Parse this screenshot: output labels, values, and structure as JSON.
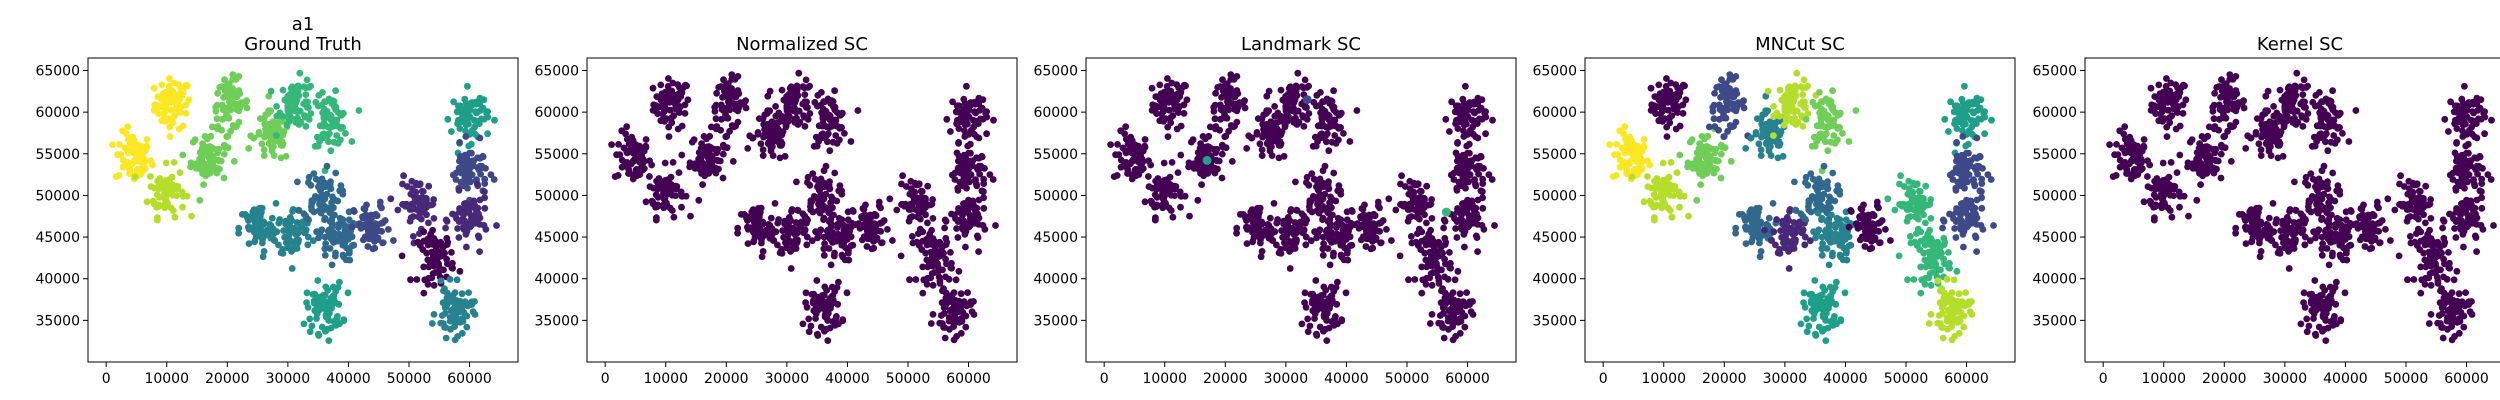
{
  "colors": {
    "background": "#ffffff",
    "axis": "#000000",
    "viridis": [
      "#440154",
      "#482878",
      "#3e4989",
      "#31688e",
      "#26828e",
      "#1f9e89",
      "#35b779",
      "#6ece58",
      "#b5de2b",
      "#fde725"
    ]
  },
  "chart_data": [
    {
      "type": "scatter",
      "title": "a1\nGround Truth",
      "xlim": [
        -3000,
        68000
      ],
      "ylim": [
        30000,
        66500
      ],
      "xticks": [
        0,
        10000,
        20000,
        30000,
        40000,
        50000,
        60000
      ],
      "yticks": [
        35000,
        40000,
        45000,
        50000,
        55000,
        60000,
        65000
      ],
      "clusters": [
        {
          "x": 11000,
          "y": 61000,
          "color": "#fde725"
        },
        {
          "x": 4500,
          "y": 54500,
          "color": "#fde725"
        },
        {
          "x": 10000,
          "y": 50500,
          "color": "#b5de2b"
        },
        {
          "x": 17000,
          "y": 54500,
          "color": "#6ece58"
        },
        {
          "x": 20500,
          "y": 61000,
          "color": "#6ece58"
        },
        {
          "x": 27500,
          "y": 57000,
          "color": "#6ece58"
        },
        {
          "x": 31500,
          "y": 61000,
          "color": "#35b779"
        },
        {
          "x": 37000,
          "y": 59000,
          "color": "#35b779"
        },
        {
          "x": 25000,
          "y": 46000,
          "color": "#26828e"
        },
        {
          "x": 31000,
          "y": 45500,
          "color": "#26828e"
        },
        {
          "x": 35500,
          "y": 50000,
          "color": "#31688e"
        },
        {
          "x": 38000,
          "y": 45000,
          "color": "#31688e"
        },
        {
          "x": 44000,
          "y": 46000,
          "color": "#3e4989"
        },
        {
          "x": 36000,
          "y": 36500,
          "color": "#1f9e89"
        },
        {
          "x": 51500,
          "y": 49000,
          "color": "#482878"
        },
        {
          "x": 54500,
          "y": 42500,
          "color": "#440154"
        },
        {
          "x": 60000,
          "y": 59500,
          "color": "#1f9e89"
        },
        {
          "x": 60000,
          "y": 53000,
          "color": "#3e4989"
        },
        {
          "x": 60000,
          "y": 47000,
          "color": "#482878"
        },
        {
          "x": 57500,
          "y": 36000,
          "color": "#26828e"
        }
      ]
    },
    {
      "type": "scatter",
      "title": "Normalized SC",
      "xlim": [
        -3000,
        68000
      ],
      "ylim": [
        30000,
        66500
      ],
      "xticks": [
        0,
        10000,
        20000,
        30000,
        40000,
        50000,
        60000
      ],
      "yticks": [
        35000,
        40000,
        45000,
        50000,
        55000,
        60000,
        65000
      ],
      "clusters": [
        {
          "x": 11000,
          "y": 61000,
          "color": "#440154"
        },
        {
          "x": 4500,
          "y": 54500,
          "color": "#440154"
        },
        {
          "x": 10000,
          "y": 50500,
          "color": "#440154"
        },
        {
          "x": 17000,
          "y": 54500,
          "color": "#440154"
        },
        {
          "x": 20500,
          "y": 61000,
          "color": "#440154"
        },
        {
          "x": 27500,
          "y": 57000,
          "color": "#440154"
        },
        {
          "x": 31500,
          "y": 61000,
          "color": "#440154"
        },
        {
          "x": 37000,
          "y": 59000,
          "color": "#440154"
        },
        {
          "x": 25000,
          "y": 46000,
          "color": "#440154"
        },
        {
          "x": 31000,
          "y": 45500,
          "color": "#440154"
        },
        {
          "x": 35500,
          "y": 50000,
          "color": "#440154"
        },
        {
          "x": 38000,
          "y": 45000,
          "color": "#440154"
        },
        {
          "x": 44000,
          "y": 46000,
          "color": "#440154"
        },
        {
          "x": 36000,
          "y": 36500,
          "color": "#440154"
        },
        {
          "x": 51500,
          "y": 49000,
          "color": "#440154"
        },
        {
          "x": 54500,
          "y": 42500,
          "color": "#440154"
        },
        {
          "x": 60000,
          "y": 59500,
          "color": "#440154"
        },
        {
          "x": 60000,
          "y": 53000,
          "color": "#440154"
        },
        {
          "x": 60000,
          "y": 47000,
          "color": "#440154"
        },
        {
          "x": 57500,
          "y": 36000,
          "color": "#440154"
        }
      ]
    },
    {
      "type": "scatter",
      "title": "Landmark SC",
      "xlim": [
        -3000,
        68000
      ],
      "ylim": [
        30000,
        66500
      ],
      "xticks": [
        0,
        10000,
        20000,
        30000,
        40000,
        50000,
        60000
      ],
      "yticks": [
        35000,
        40000,
        45000,
        50000,
        55000,
        60000,
        65000
      ],
      "clusters": [
        {
          "x": 11000,
          "y": 61000,
          "color": "#440154"
        },
        {
          "x": 4500,
          "y": 54500,
          "color": "#440154"
        },
        {
          "x": 10000,
          "y": 50500,
          "color": "#440154"
        },
        {
          "x": 17000,
          "y": 54500,
          "color": "#440154"
        },
        {
          "x": 20500,
          "y": 61000,
          "color": "#440154"
        },
        {
          "x": 27500,
          "y": 57000,
          "color": "#440154"
        },
        {
          "x": 31500,
          "y": 61000,
          "color": "#440154"
        },
        {
          "x": 37000,
          "y": 59000,
          "color": "#440154"
        },
        {
          "x": 25000,
          "y": 46000,
          "color": "#440154"
        },
        {
          "x": 31000,
          "y": 45500,
          "color": "#440154"
        },
        {
          "x": 35500,
          "y": 50000,
          "color": "#440154"
        },
        {
          "x": 38000,
          "y": 45000,
          "color": "#440154"
        },
        {
          "x": 44000,
          "y": 46000,
          "color": "#440154"
        },
        {
          "x": 36000,
          "y": 36500,
          "color": "#440154"
        },
        {
          "x": 51500,
          "y": 49000,
          "color": "#440154"
        },
        {
          "x": 54500,
          "y": 42500,
          "color": "#440154"
        },
        {
          "x": 60000,
          "y": 59500,
          "color": "#440154"
        },
        {
          "x": 60000,
          "y": 53000,
          "color": "#440154"
        },
        {
          "x": 60000,
          "y": 47000,
          "color": "#440154"
        },
        {
          "x": 57500,
          "y": 36000,
          "color": "#440154"
        }
      ],
      "outliers": [
        {
          "x": 17000,
          "y": 54200,
          "color": "#1f9e89"
        },
        {
          "x": 56500,
          "y": 48000,
          "color": "#35b779"
        },
        {
          "x": 33500,
          "y": 61500,
          "color": "#3e4989"
        }
      ]
    },
    {
      "type": "scatter",
      "title": "MNCut SC",
      "xlim": [
        -3000,
        68000
      ],
      "ylim": [
        30000,
        66500
      ],
      "xticks": [
        0,
        10000,
        20000,
        30000,
        40000,
        50000,
        60000
      ],
      "yticks": [
        35000,
        40000,
        45000,
        50000,
        55000,
        60000,
        65000
      ],
      "clusters": [
        {
          "x": 11000,
          "y": 61000,
          "color": "#440154"
        },
        {
          "x": 4500,
          "y": 54500,
          "color": "#fde725"
        },
        {
          "x": 10000,
          "y": 50500,
          "color": "#b5de2b"
        },
        {
          "x": 17000,
          "y": 54500,
          "color": "#6ece58"
        },
        {
          "x": 20500,
          "y": 61000,
          "color": "#3e4989"
        },
        {
          "x": 27500,
          "y": 57000,
          "color": "#26828e"
        },
        {
          "x": 31500,
          "y": 61000,
          "color": "#b5de2b"
        },
        {
          "x": 37000,
          "y": 59000,
          "color": "#6ece58"
        },
        {
          "x": 25000,
          "y": 46000,
          "color": "#31688e"
        },
        {
          "x": 31000,
          "y": 45500,
          "color": "#482878"
        },
        {
          "x": 35500,
          "y": 50000,
          "color": "#31688e"
        },
        {
          "x": 38000,
          "y": 45000,
          "color": "#26828e"
        },
        {
          "x": 44000,
          "y": 46000,
          "color": "#440154"
        },
        {
          "x": 36000,
          "y": 36500,
          "color": "#1f9e89"
        },
        {
          "x": 51500,
          "y": 49000,
          "color": "#35b779"
        },
        {
          "x": 54500,
          "y": 42500,
          "color": "#35b779"
        },
        {
          "x": 60000,
          "y": 59500,
          "color": "#1f9e89"
        },
        {
          "x": 60000,
          "y": 53000,
          "color": "#3e4989"
        },
        {
          "x": 60000,
          "y": 47000,
          "color": "#3e4989"
        },
        {
          "x": 57500,
          "y": 36000,
          "color": "#b5de2b"
        }
      ]
    },
    {
      "type": "scatter",
      "title": "Kernel SC",
      "xlim": [
        -3000,
        68000
      ],
      "ylim": [
        30000,
        66500
      ],
      "xticks": [
        0,
        10000,
        20000,
        30000,
        40000,
        50000,
        60000
      ],
      "yticks": [
        35000,
        40000,
        45000,
        50000,
        55000,
        60000,
        65000
      ],
      "clusters": [
        {
          "x": 11000,
          "y": 61000,
          "color": "#440154"
        },
        {
          "x": 4500,
          "y": 54500,
          "color": "#440154"
        },
        {
          "x": 10000,
          "y": 50500,
          "color": "#440154"
        },
        {
          "x": 17000,
          "y": 54500,
          "color": "#440154"
        },
        {
          "x": 20500,
          "y": 61000,
          "color": "#440154"
        },
        {
          "x": 27500,
          "y": 57000,
          "color": "#440154"
        },
        {
          "x": 31500,
          "y": 61000,
          "color": "#440154"
        },
        {
          "x": 37000,
          "y": 59000,
          "color": "#440154"
        },
        {
          "x": 25000,
          "y": 46000,
          "color": "#440154"
        },
        {
          "x": 31000,
          "y": 45500,
          "color": "#440154"
        },
        {
          "x": 35500,
          "y": 50000,
          "color": "#440154"
        },
        {
          "x": 38000,
          "y": 45000,
          "color": "#440154"
        },
        {
          "x": 44000,
          "y": 46000,
          "color": "#440154"
        },
        {
          "x": 36000,
          "y": 36500,
          "color": "#440154"
        },
        {
          "x": 51500,
          "y": 49000,
          "color": "#440154"
        },
        {
          "x": 54500,
          "y": 42500,
          "color": "#440154"
        },
        {
          "x": 60000,
          "y": 59500,
          "color": "#440154"
        },
        {
          "x": 60000,
          "y": 53000,
          "color": "#440154"
        },
        {
          "x": 60000,
          "y": 47000,
          "color": "#440154"
        },
        {
          "x": 57500,
          "y": 36000,
          "color": "#440154"
        }
      ]
    }
  ]
}
